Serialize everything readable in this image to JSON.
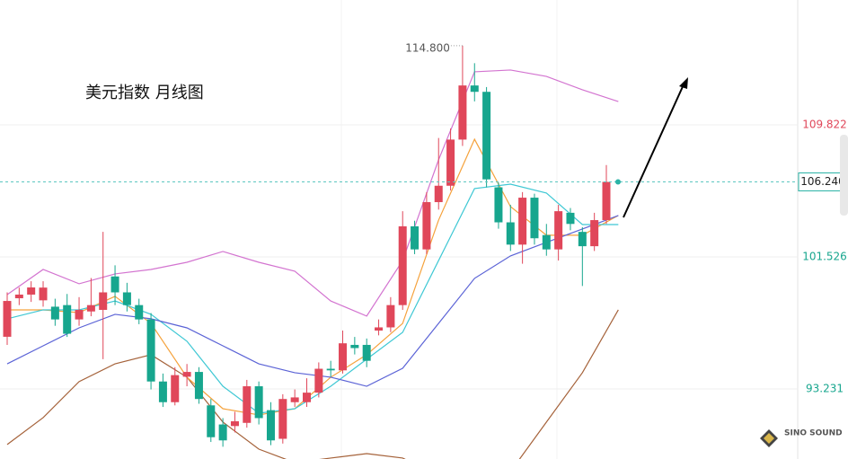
{
  "chart_data": {
    "type": "candlestick",
    "title": "美元指数  月线图",
    "ylim": [
      88.83,
      117.67
    ],
    "yticks": [
      93.231,
      101.526,
      109.822
    ],
    "grid": true,
    "up_color": "#e0475a",
    "down_color": "#17a68e",
    "last_price": {
      "value": 106.24,
      "label": "106.240"
    },
    "high_label": {
      "value": 114.8,
      "label": "114.800"
    },
    "high_index": 38,
    "watermark": "SINO SOUND",
    "open": [
      96.51,
      98.93,
      99.16,
      98.8,
      98.4,
      98.5,
      97.6,
      98.1,
      98.2,
      100.3,
      99.3,
      98.5,
      97.6,
      93.7,
      92.4,
      94.0,
      94.3,
      92.2,
      91.0,
      90.9,
      91.1,
      93.4,
      91.9,
      90.1,
      92.4,
      92.4,
      93.0,
      94.5,
      94.4,
      96.0,
      96.0,
      96.9,
      97.1,
      98.5,
      103.45,
      102.0,
      104.97,
      106.0,
      108.9,
      112.3,
      111.9,
      105.9,
      103.7,
      102.3,
      105.25,
      102.9,
      102.0,
      104.3,
      103.1,
      102.2,
      103.84
    ],
    "high": [
      99.3,
      99.6,
      100.0,
      100.0,
      98.9,
      99.2,
      99.0,
      100.2,
      103.1,
      101.0,
      99.9,
      98.9,
      98.0,
      94.2,
      94.6,
      94.8,
      94.6,
      92.6,
      91.4,
      91.8,
      93.8,
      93.7,
      92.4,
      92.9,
      93.2,
      93.9,
      94.9,
      95.0,
      96.9,
      96.5,
      96.4,
      97.6,
      99.0,
      104.4,
      103.8,
      105.6,
      109.0,
      109.6,
      114.8,
      113.7,
      112.2,
      106.2,
      104.8,
      105.6,
      105.5,
      103.6,
      104.8,
      104.6,
      103.4,
      104.3,
      107.3
    ],
    "low": [
      96.0,
      98.5,
      98.7,
      98.4,
      97.2,
      96.5,
      97.2,
      97.8,
      95.1,
      98.5,
      98.1,
      97.3,
      93.2,
      92.1,
      92.2,
      93.4,
      92.3,
      89.9,
      89.6,
      90.5,
      90.8,
      91.0,
      89.7,
      89.8,
      92.1,
      92.1,
      92.7,
      94.0,
      94.2,
      95.4,
      94.6,
      96.6,
      96.8,
      98.2,
      101.7,
      101.7,
      104.5,
      105.7,
      108.5,
      111.3,
      105.9,
      103.3,
      101.9,
      101.1,
      102.3,
      101.6,
      101.3,
      103.2,
      99.7,
      101.9,
      103.6
    ],
    "close": [
      98.76,
      99.16,
      99.61,
      99.6,
      97.6,
      96.7,
      98.2,
      98.5,
      99.3,
      99.3,
      98.5,
      97.6,
      93.7,
      92.4,
      94.1,
      94.3,
      92.6,
      90.2,
      90.0,
      91.2,
      93.4,
      91.4,
      90.0,
      92.6,
      92.7,
      93.0,
      94.5,
      94.4,
      96.1,
      95.8,
      95.0,
      97.1,
      98.5,
      103.45,
      102.0,
      104.97,
      106.0,
      108.9,
      112.3,
      111.9,
      106.4,
      103.7,
      102.3,
      105.25,
      102.7,
      102.0,
      104.4,
      103.6,
      102.2,
      103.84,
      106.24
    ],
    "line_x": [
      0,
      3,
      6,
      9,
      12,
      15,
      18,
      21,
      24,
      27,
      30,
      33,
      36,
      39,
      42,
      45,
      48,
      51
    ],
    "lines": [
      {
        "color": "#d374d0",
        "values": [
          99.16,
          100.74,
          99.84,
          100.46,
          100.74,
          101.19,
          101.87,
          101.19,
          100.63,
          98.76,
          97.81,
          101.3,
          107.63,
          113.16,
          113.27,
          112.87,
          112.03,
          111.29
        ]
      },
      {
        "color": "#a5623a",
        "values": [
          89.74,
          91.43,
          93.69,
          94.81,
          95.38,
          93.97,
          91.15,
          89.45,
          88.6,
          88.89,
          89.17,
          88.89,
          87.76,
          87.76,
          88.04,
          91.15,
          94.25,
          98.2
        ]
      },
      {
        "color": "#f5a23c",
        "values": [
          98.2,
          98.2,
          98.03,
          99.05,
          97.35,
          93.97,
          91.99,
          91.6,
          91.99,
          93.97,
          95.38,
          97.35,
          103.84,
          108.92,
          104.69,
          102.89,
          102.89,
          104.13
        ]
      },
      {
        "color": "#3fc8d4",
        "values": [
          97.64,
          98.2,
          98.2,
          98.76,
          97.92,
          96.23,
          93.4,
          91.71,
          91.99,
          93.4,
          95.1,
          96.79,
          101.3,
          105.82,
          106.1,
          105.54,
          103.56,
          103.56
        ]
      },
      {
        "color": "#5b63d6",
        "values": [
          94.81,
          95.94,
          97.07,
          97.92,
          97.64,
          97.07,
          95.94,
          94.81,
          94.25,
          93.97,
          93.4,
          94.53,
          97.35,
          100.18,
          101.59,
          102.44,
          103.28,
          104.13
        ]
      }
    ]
  }
}
